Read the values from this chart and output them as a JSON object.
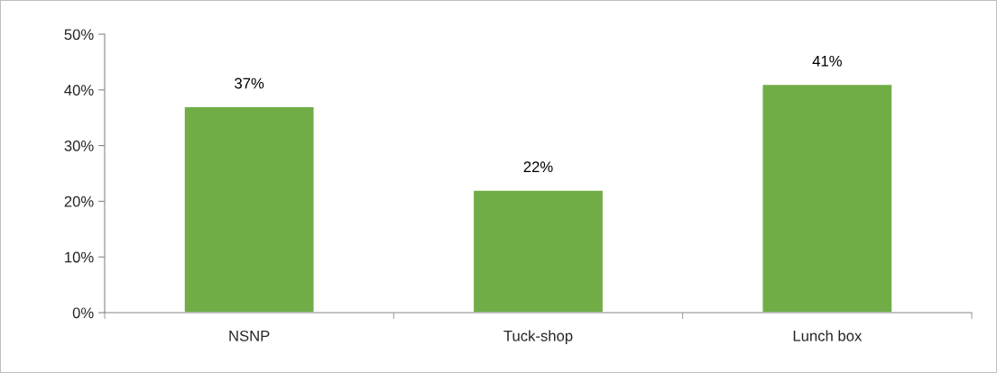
{
  "chart_data": {
    "type": "bar",
    "categories": [
      "NSNP",
      "Tuck-shop",
      "Lunch box"
    ],
    "values": [
      37,
      22,
      41
    ],
    "color": "#70ad47",
    "value_labels": [
      "37%",
      "22%",
      "41%"
    ],
    "ylim": [
      0,
      50
    ],
    "yticks": [
      {
        "value": 0,
        "label": "0%"
      },
      {
        "value": 10,
        "label": "10%"
      },
      {
        "value": 20,
        "label": "20%"
      },
      {
        "value": 30,
        "label": "30%"
      },
      {
        "value": 40,
        "label": "40%"
      },
      {
        "value": 50,
        "label": "50%"
      }
    ],
    "grid": false,
    "legend": false
  }
}
